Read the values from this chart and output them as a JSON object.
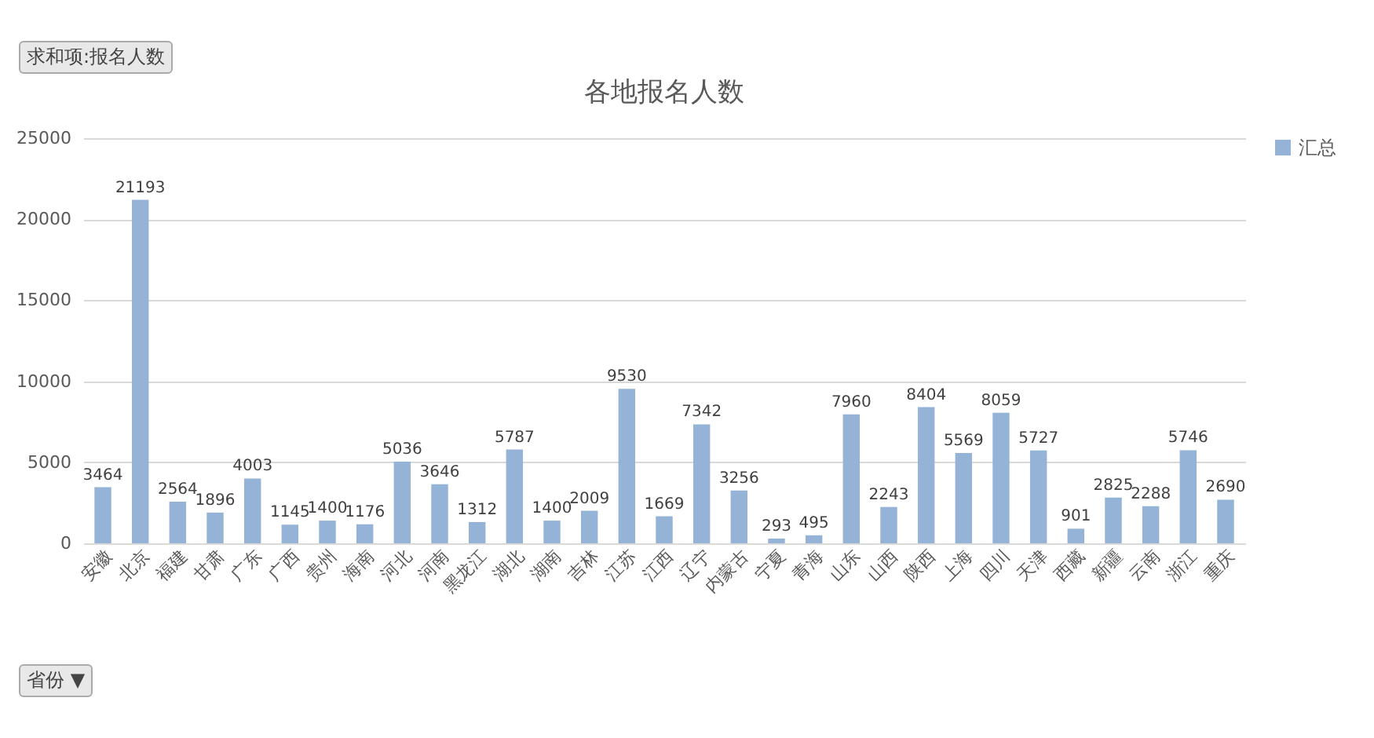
{
  "chart_data": {
    "type": "bar",
    "title": "各地报名人数",
    "categories": [
      "安徽",
      "北京",
      "福建",
      "甘肃",
      "广东",
      "广西",
      "贵州",
      "海南",
      "河北",
      "河南",
      "黑龙江",
      "湖北",
      "湖南",
      "吉林",
      "江苏",
      "江西",
      "辽宁",
      "内蒙古",
      "宁夏",
      "青海",
      "山东",
      "山西",
      "陕西",
      "上海",
      "四川",
      "天津",
      "西藏",
      "新疆",
      "云南",
      "浙江",
      "重庆"
    ],
    "series": [
      {
        "name": "汇总",
        "color": "#95b3d7",
        "values": [
          3464,
          21193,
          2564,
          1896,
          4003,
          1145,
          1400,
          1176,
          5036,
          3646,
          1312,
          5787,
          1400,
          2009,
          9530,
          1669,
          7342,
          3256,
          293,
          495,
          7960,
          2243,
          8404,
          5569,
          8059,
          5727,
          901,
          2825,
          2288,
          5746,
          2690
        ]
      }
    ],
    "ylim": [
      0,
      25000
    ],
    "yticks": [
      0,
      5000,
      10000,
      15000,
      20000,
      25000
    ],
    "grid": "y",
    "legend": "right",
    "data_labels": true,
    "annotations": [
      "求和项:报名人数",
      "省份 ▼"
    ]
  }
}
